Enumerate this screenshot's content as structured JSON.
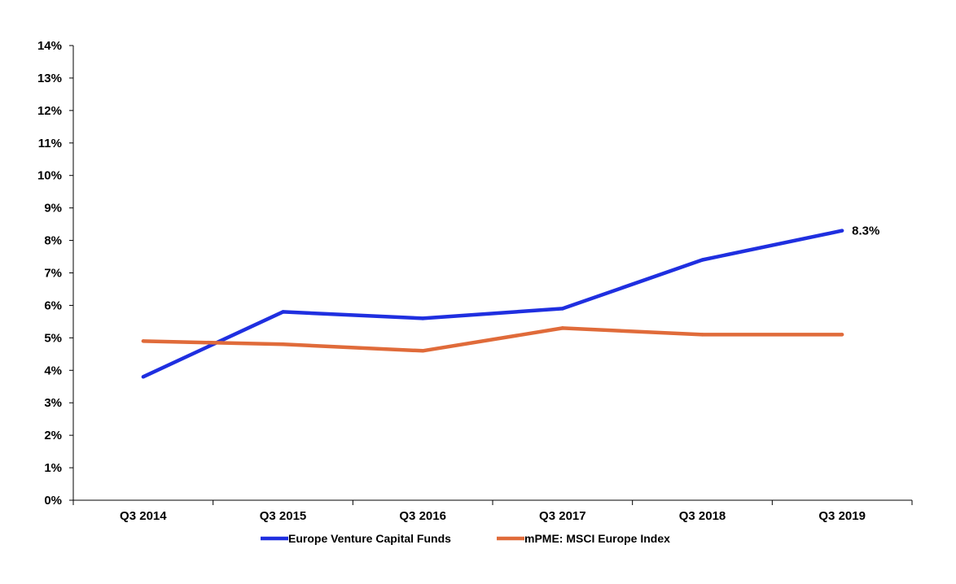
{
  "chart_data": {
    "type": "line",
    "categories": [
      "Q3 2014",
      "Q3 2015",
      "Q3 2016",
      "Q3 2017",
      "Q3 2018",
      "Q3 2019"
    ],
    "series": [
      {
        "name": "Europe Venture Capital Funds",
        "color": "#1f2fe0",
        "values": [
          3.8,
          5.8,
          5.6,
          5.9,
          7.4,
          8.3
        ]
      },
      {
        "name": "mPME: MSCI Europe Index",
        "color": "#e06b3a",
        "values": [
          4.9,
          4.8,
          4.6,
          5.3,
          5.1,
          5.1
        ]
      }
    ],
    "ylim": [
      0,
      14
    ],
    "yticks": [
      0,
      1,
      2,
      3,
      4,
      5,
      6,
      7,
      8,
      9,
      10,
      11,
      12,
      13,
      14
    ],
    "ytick_suffix": "%",
    "annotations": [
      {
        "series": 0,
        "index": 5,
        "text": "8.3%"
      }
    ],
    "legend_position": "bottom-center",
    "grid": false,
    "title": "",
    "xlabel": "",
    "ylabel": ""
  }
}
